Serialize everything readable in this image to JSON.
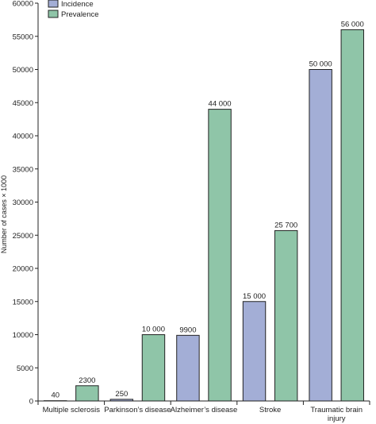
{
  "chart_data": {
    "type": "bar",
    "categories": [
      [
        "Multiple sclerosis"
      ],
      [
        "Parkinson’s disease"
      ],
      [
        "Alzheimer’s disease"
      ],
      [
        "Stroke"
      ],
      [
        "Traumatic brain",
        "injury"
      ]
    ],
    "series": [
      {
        "name": "Incidence",
        "color": "#a3aed6",
        "values": [
          40,
          250,
          9900,
          15000,
          50000
        ],
        "labels": [
          "40",
          "250",
          "9900",
          "15 000",
          "50 000"
        ]
      },
      {
        "name": "Prevalence",
        "color": "#8fc5a8",
        "values": [
          2300,
          10000,
          44000,
          25700,
          56000
        ],
        "labels": [
          "2300",
          "10 000",
          "44 000",
          "25 700",
          "56 000"
        ]
      }
    ],
    "ylabel": "Number of cases × 1000",
    "ylim": [
      0,
      60000
    ],
    "yticks": [
      0,
      5000,
      10000,
      15000,
      20000,
      25000,
      30000,
      35000,
      40000,
      45000,
      50000,
      55000,
      60000
    ],
    "grid": false,
    "legend": "top-left"
  }
}
